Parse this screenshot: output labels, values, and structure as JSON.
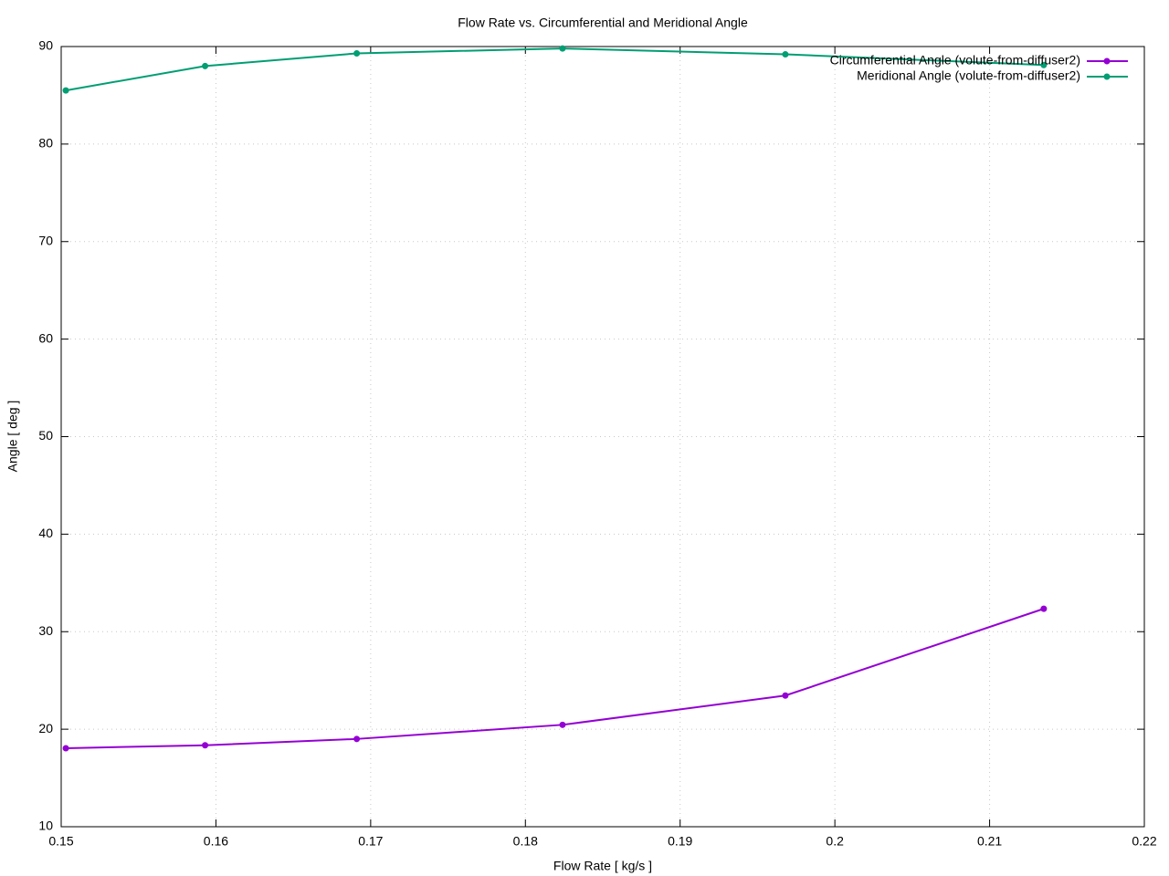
{
  "chart_data": {
    "type": "line",
    "title": "Flow Rate vs. Circumferential and Meridional Angle",
    "x_label": "Flow Rate [ kg/s ]",
    "y_label": "Angle [ deg ]",
    "x": [
      0.1503,
      0.1593,
      0.1691,
      0.1824,
      0.1968,
      0.2135
    ],
    "series": [
      {
        "name": "Circumferential Angle (volute-from-diffuser2)",
        "color": "#9400d3",
        "values": [
          18.05,
          18.35,
          19.0,
          20.45,
          23.45,
          32.35
        ]
      },
      {
        "name": "Meridional Angle (volute-from-diffuser2)",
        "color": "#009e73",
        "values": [
          85.5,
          88.0,
          89.3,
          89.8,
          89.2,
          88.1
        ]
      }
    ],
    "xlim": [
      0.15,
      0.22
    ],
    "xticks": [
      0.15,
      0.16,
      0.17,
      0.18,
      0.19,
      0.2,
      0.21,
      0.22
    ],
    "ylim": [
      10,
      90
    ],
    "yticks": [
      10,
      20,
      30,
      40,
      50,
      60,
      70,
      80,
      90
    ],
    "grid": true,
    "legend": "top-right"
  }
}
